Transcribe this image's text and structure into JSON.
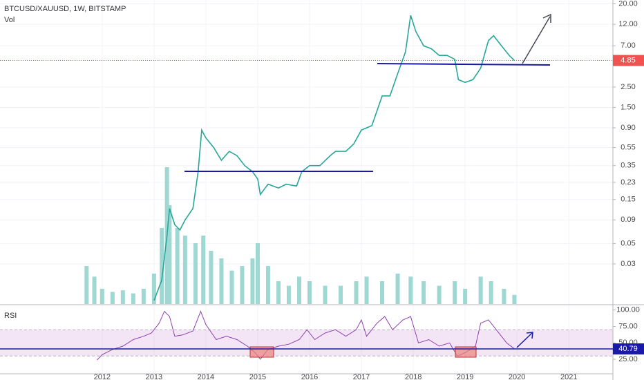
{
  "chart_data": {
    "type": "line",
    "title": "BTCUSD/XAUUSD, 1W, BITSTAMP",
    "volume_label": "Vol",
    "log_scale": true,
    "grid": true,
    "color": "#26a69a",
    "x": [
      2013.0,
      2013.15,
      2013.25,
      2013.3,
      2013.4,
      2013.5,
      2013.6,
      2013.75,
      2013.85,
      2013.92,
      2014.0,
      2014.15,
      2014.3,
      2014.45,
      2014.6,
      2014.75,
      2014.9,
      2015.0,
      2015.05,
      2015.2,
      2015.4,
      2015.55,
      2015.75,
      2015.85,
      2016.0,
      2016.2,
      2016.4,
      2016.5,
      2016.7,
      2016.85,
      2017.0,
      2017.2,
      2017.4,
      2017.55,
      2017.7,
      2017.85,
      2017.95,
      2018.05,
      2018.2,
      2018.35,
      2018.5,
      2018.65,
      2018.8,
      2018.87,
      2019.0,
      2019.15,
      2019.3,
      2019.45,
      2019.55,
      2019.7,
      2019.85,
      2019.95
    ],
    "values": [
      0.012,
      0.02,
      0.06,
      0.12,
      0.08,
      0.07,
      0.09,
      0.12,
      0.3,
      0.85,
      0.7,
      0.55,
      0.4,
      0.5,
      0.45,
      0.35,
      0.3,
      0.25,
      0.17,
      0.22,
      0.2,
      0.22,
      0.21,
      0.3,
      0.35,
      0.35,
      0.45,
      0.5,
      0.5,
      0.6,
      0.85,
      0.95,
      2.0,
      2.0,
      3.5,
      6,
      15,
      10,
      7,
      6.5,
      5.5,
      5.5,
      5,
      3,
      2.8,
      3,
      4,
      8,
      9,
      7,
      5.5,
      4.85
    ],
    "last_price": 4.85,
    "ylim": [
      0.011,
      22
    ],
    "yticks": [
      {
        "value": 20,
        "label": "20.00"
      },
      {
        "value": 12,
        "label": "12.00"
      },
      {
        "value": 7,
        "label": "7.00"
      },
      {
        "value": 2.5,
        "label": "2.50"
      },
      {
        "value": 1.5,
        "label": "1.50"
      },
      {
        "value": 0.9,
        "label": "0.90"
      },
      {
        "value": 0.55,
        "label": "0.55"
      },
      {
        "value": 0.35,
        "label": "0.35"
      },
      {
        "value": 0.23,
        "label": "0.23"
      },
      {
        "value": 0.15,
        "label": "0.15"
      },
      {
        "value": 0.09,
        "label": "0.09"
      },
      {
        "value": 0.05,
        "label": "0.05"
      },
      {
        "value": 0.03,
        "label": "0.03"
      }
    ],
    "xlim": [
      2010.03,
      2021.85
    ],
    "xticks": [
      2012,
      2013,
      2014,
      2015,
      2016,
      2017,
      2018,
      2019,
      2020,
      2021
    ],
    "volume": {
      "color": "#9fd8d2",
      "x": [
        2011.7,
        2011.85,
        2012.0,
        2012.2,
        2012.4,
        2012.6,
        2012.8,
        2013.0,
        2013.15,
        2013.25,
        2013.3,
        2013.45,
        2013.6,
        2013.8,
        2013.95,
        2014.1,
        2014.3,
        2014.5,
        2014.7,
        2014.9,
        2015.0,
        2015.2,
        2015.4,
        2015.6,
        2015.8,
        2016.0,
        2016.3,
        2016.6,
        2016.9,
        2017.1,
        2017.4,
        2017.7,
        2017.95,
        2018.2,
        2018.5,
        2018.8,
        2019.0,
        2019.3,
        2019.5,
        2019.75,
        2019.95
      ],
      "values": [
        25,
        18,
        10,
        8,
        9,
        7,
        10,
        20,
        50,
        90,
        65,
        50,
        45,
        40,
        45,
        35,
        30,
        22,
        25,
        30,
        40,
        25,
        15,
        12,
        18,
        15,
        12,
        12,
        15,
        18,
        15,
        20,
        18,
        15,
        12,
        15,
        10,
        18,
        15,
        10,
        6
      ],
      "ylim": [
        0,
        100
      ]
    },
    "rsi": {
      "title": "RSI",
      "color": "#8e3fae",
      "x": [
        2011.9,
        2012.0,
        2012.2,
        2012.4,
        2012.6,
        2012.8,
        2012.95,
        2013.1,
        2013.2,
        2013.3,
        2013.4,
        2013.55,
        2013.75,
        2013.9,
        2014.0,
        2014.2,
        2014.4,
        2014.6,
        2014.8,
        2014.95,
        2015.05,
        2015.2,
        2015.4,
        2015.6,
        2015.8,
        2015.95,
        2016.1,
        2016.3,
        2016.5,
        2016.7,
        2016.9,
        2017.0,
        2017.1,
        2017.3,
        2017.45,
        2017.6,
        2017.8,
        2017.95,
        2018.1,
        2018.3,
        2018.5,
        2018.7,
        2018.85,
        2019.0,
        2019.2,
        2019.3,
        2019.45,
        2019.6,
        2019.8,
        2019.95
      ],
      "values": [
        24,
        32,
        40,
        45,
        55,
        60,
        65,
        80,
        98,
        90,
        60,
        62,
        68,
        98,
        78,
        55,
        60,
        55,
        45,
        35,
        25,
        40,
        45,
        48,
        55,
        70,
        55,
        65,
        70,
        60,
        70,
        85,
        60,
        80,
        90,
        70,
        85,
        90,
        50,
        55,
        45,
        50,
        30,
        35,
        45,
        80,
        85,
        70,
        50,
        41
      ],
      "last": 40.79,
      "ylim": [
        4,
        106
      ],
      "yticks": [
        {
          "value": 100,
          "label": "100.00"
        },
        {
          "value": 75,
          "label": "75.00"
        },
        {
          "value": 50,
          "label": "50.00"
        },
        {
          "value": 25,
          "label": "25.00"
        }
      ],
      "band": [
        30,
        70
      ]
    }
  }
}
